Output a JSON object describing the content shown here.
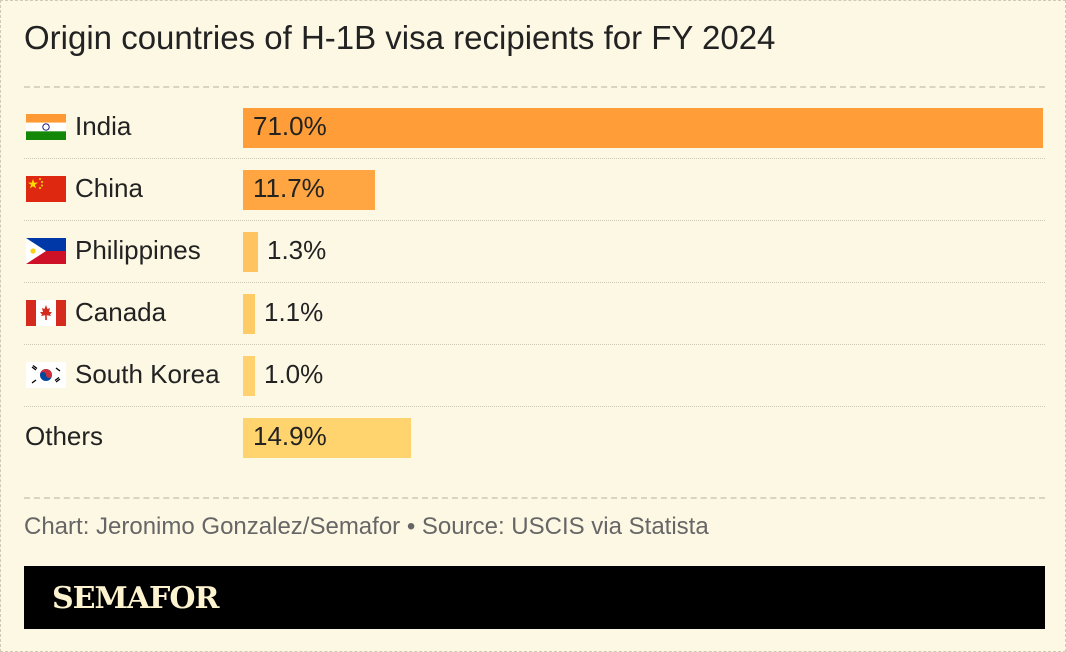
{
  "chart_data": {
    "type": "bar",
    "orientation": "horizontal",
    "title": "Origin countries of H-1B visa recipients for FY 2024",
    "categories": [
      "India",
      "China",
      "Philippines",
      "Canada",
      "South Korea",
      "Others"
    ],
    "values": [
      71.0,
      11.7,
      1.3,
      1.1,
      1.0,
      14.9
    ],
    "value_labels": [
      "71.0%",
      "11.7%",
      "1.3%",
      "1.1%",
      "1.0%",
      "14.9%"
    ],
    "flags": [
      "india-flag-icon",
      "china-flag-icon",
      "philippines-flag-icon",
      "canada-flag-icon",
      "south-korea-flag-icon",
      ""
    ],
    "bar_colors": [
      "#ff9d38",
      "#ffa541",
      "#ffc35f",
      "#ffcb66",
      "#ffd26f",
      "#ffd46f"
    ],
    "xlim": [
      0,
      71
    ],
    "grid": false,
    "legend": "none",
    "source": "Chart: Jeronimo Gonzalez/Semafor • Source: USCIS via Statista"
  },
  "brand": {
    "name": "SEMAFOR"
  }
}
